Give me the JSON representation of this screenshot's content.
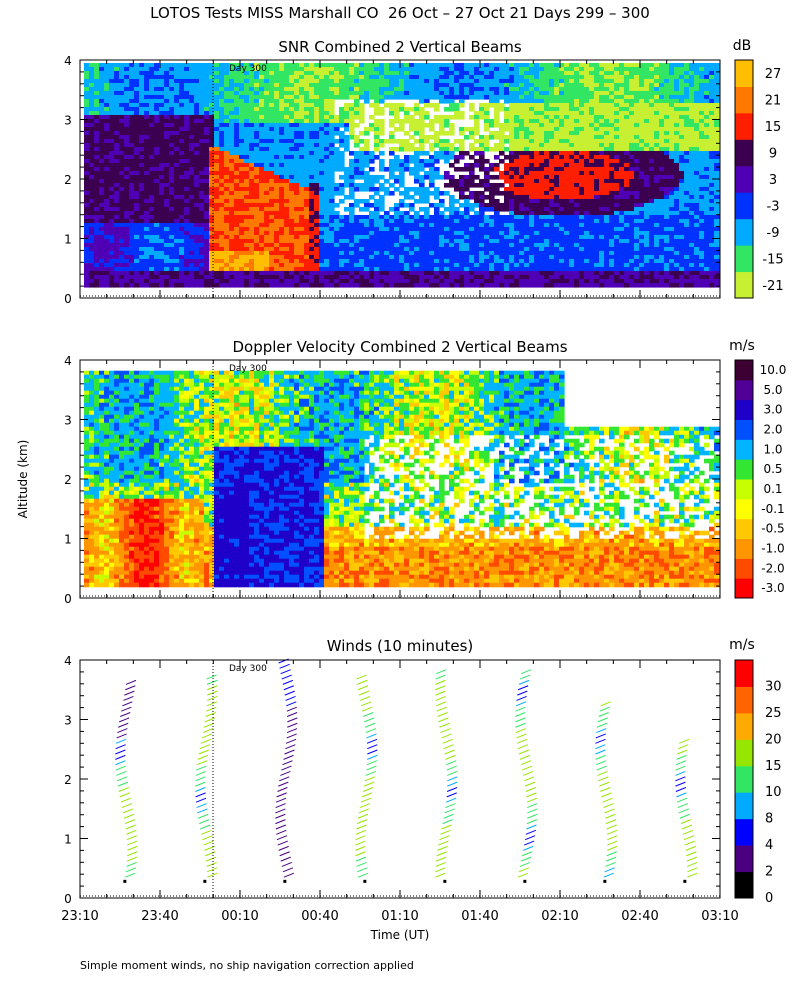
{
  "page": {
    "title": "LOTOS Tests MISS Marshall CO  26 Oct – 27 Oct 21 Days 299 – 300",
    "ylabel": "Altitude (km)",
    "xlabel": "Time (UT)",
    "footnote": "Simple moment winds, no ship navigation correction applied",
    "day_marker": "Day 300",
    "time_ticks": [
      "23:10",
      "23:40",
      "00:10",
      "00:40",
      "01:10",
      "01:40",
      "02:10",
      "02:40",
      "03:10"
    ],
    "altitude_ticks": [
      "0",
      "1",
      "2",
      "3",
      "4"
    ]
  },
  "colors": {
    "snr": [
      "#c8f032",
      "#32e664",
      "#00aaff",
      "#0032ff",
      "#5000b4",
      "#3c0050",
      "#ff1e00",
      "#ff7800",
      "#ffbe00"
    ],
    "doppler": [
      "#ff0000",
      "#ff4b00",
      "#ff9600",
      "#ffc800",
      "#ffff00",
      "#c8ff00",
      "#32e632",
      "#00b4ff",
      "#0050ff",
      "#1e00c8",
      "#500096",
      "#3c0032"
    ],
    "winds": [
      "#000000",
      "#4b0082",
      "#0000ff",
      "#00aaff",
      "#32e664",
      "#96e600",
      "#ffaa00",
      "#ff6400",
      "#ff0000"
    ]
  },
  "chart_data": [
    {
      "type": "heatmap",
      "title": "SNR Combined 2 Vertical Beams",
      "unit": "dB",
      "x_range": [
        "23:10",
        "03:10"
      ],
      "ylim": [
        0,
        4
      ],
      "colorbar_labels": [
        "-21",
        "-15",
        "-9",
        "-3",
        "3",
        "9",
        "15",
        "21",
        "27"
      ],
      "features": [
        {
          "region": "23:10–00:00, 1.5–3.0 km",
          "level_db": 9
        },
        {
          "region": "00:00–00:35, 0.2–2.5 km",
          "level_db": 21
        },
        {
          "region": "00:00–00:20, 0.2–0.8 km",
          "level_db": 27
        },
        {
          "region": "01:50–02:50, 1.5–2.7 km",
          "level_db": 9
        }
      ]
    },
    {
      "type": "heatmap",
      "title": "Doppler Velocity Combined 2 Vertical Beams",
      "unit": "m/s",
      "x_range": [
        "23:10",
        "03:10"
      ],
      "ylim": [
        0,
        4
      ],
      "colorbar_labels": [
        "10.0",
        "5.0",
        "3.0",
        "2.0",
        "1.0",
        "0.5",
        "0.1",
        "-0.1",
        "-0.5",
        "-1.0",
        "-2.0",
        "-3.0"
      ],
      "features": [
        {
          "region": "00:00–00:40, 0.2–2.5 km",
          "velocity_ms": 3.0
        },
        {
          "region": "23:10–00:00, 0.2–1.8 km",
          "velocity_ms": -1.0
        },
        {
          "region": "00:40–03:10, 0.2–1.2 km",
          "velocity_ms": -0.5
        },
        {
          "region": "23:10–03:10, 2.0–3.8 km",
          "velocity_ms": 0.5
        }
      ]
    },
    {
      "type": "scatter",
      "title": "Winds (10 minutes)",
      "unit": "m/s",
      "x_range": [
        "23:10",
        "03:10"
      ],
      "ylim": [
        0,
        4
      ],
      "colorbar_labels": [
        "0",
        "2",
        "4",
        "8",
        "10",
        "15",
        "20",
        "25",
        "30"
      ],
      "profile_times": [
        "23:30",
        "00:00",
        "00:30",
        "01:00",
        "01:30",
        "02:00",
        "02:30",
        "03:00"
      ],
      "profile_top_km": [
        3.6,
        3.7,
        4.0,
        3.7,
        3.8,
        3.8,
        3.3,
        2.6
      ]
    }
  ]
}
